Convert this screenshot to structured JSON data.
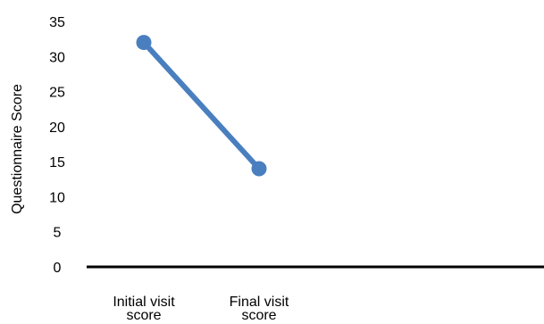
{
  "chart_data": {
    "type": "line",
    "title": "",
    "xlabel": "",
    "ylabel": "Questionnaire Score",
    "categories": [
      [
        "Initial visit",
        "score"
      ],
      [
        "Final visit",
        "score"
      ]
    ],
    "ylim": [
      0,
      35
    ],
    "yticks": [
      0,
      5,
      10,
      15,
      20,
      25,
      30,
      35
    ],
    "grid": false,
    "legend": "none",
    "series": [
      {
        "values": [
          32,
          14
        ],
        "color": "#4a7fbf"
      }
    ]
  }
}
